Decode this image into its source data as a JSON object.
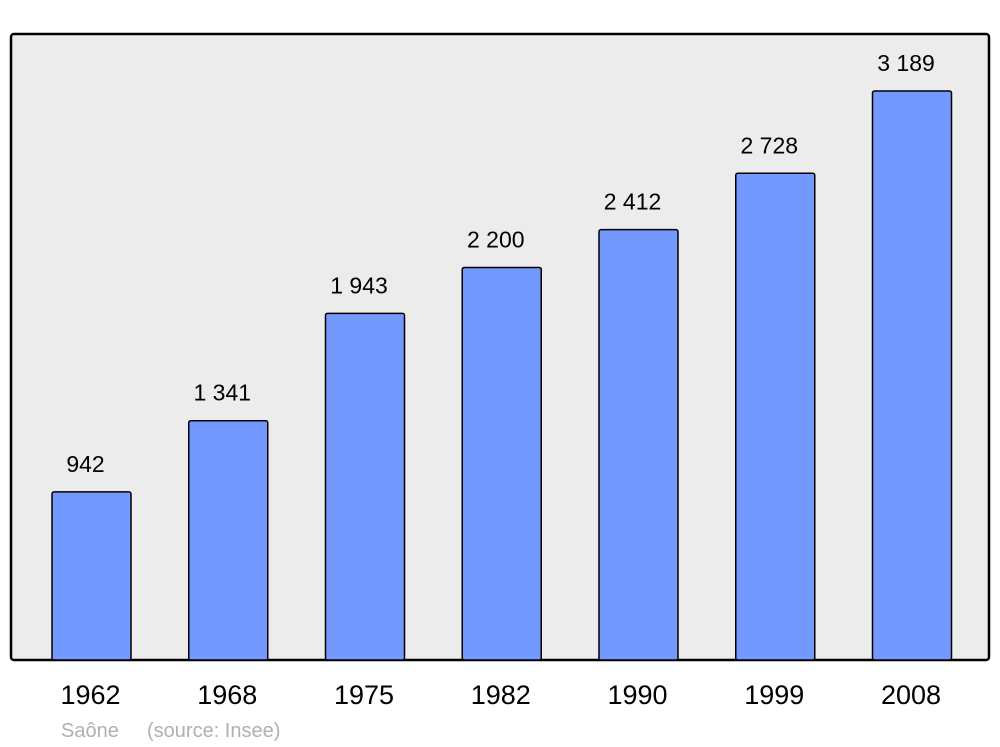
{
  "chart_data": {
    "type": "bar",
    "categories": [
      "1962",
      "1968",
      "1975",
      "1982",
      "1990",
      "1999",
      "2008"
    ],
    "values": [
      942,
      1341,
      1943,
      2200,
      2412,
      2728,
      3189
    ],
    "value_labels": [
      "942",
      "1 341",
      "1 943",
      "2 200",
      "2 412",
      "2 728",
      "3 189"
    ],
    "title": "",
    "xlabel": "",
    "ylabel": "",
    "ylim": [
      0,
      3500
    ],
    "grid": false,
    "bar_color": "#7399ff",
    "background_color": "#ececec",
    "caption_place": "Saône",
    "caption_source": "(source: Insee)"
  }
}
